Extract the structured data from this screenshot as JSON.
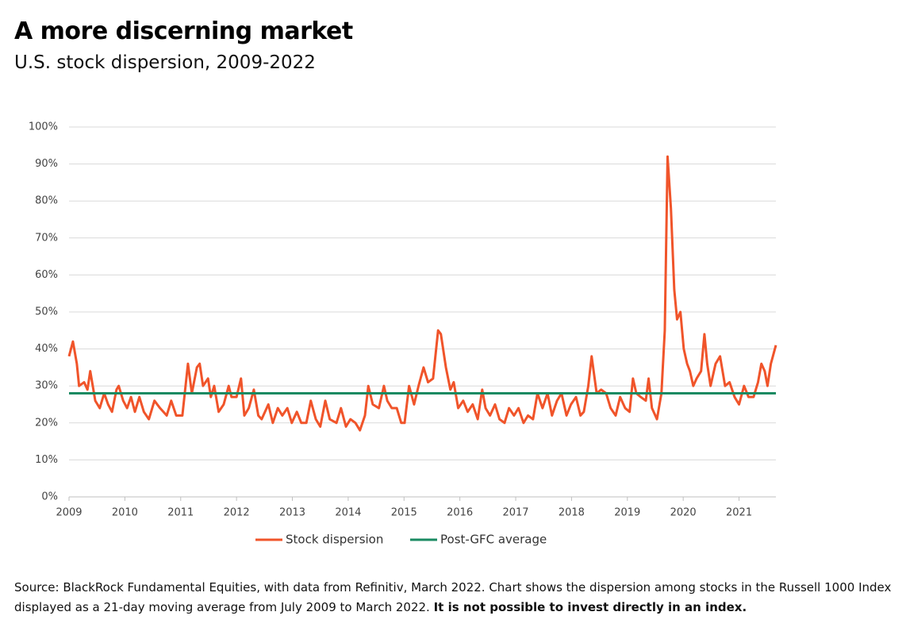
{
  "chart_data": {
    "type": "line",
    "title": "A more discerning market",
    "subtitle": "U.S. stock dispersion, 2009-2022",
    "footnote": "Source: BlackRock Fundamental Equities, with data from Refinitiv, March 2022. Chart shows the dispersion among stocks in the Russell 1000 Index displayed as a 21-day moving average from July 2009 to March 2022.",
    "footnote_emphasis": "It is not possible to invest directly in an index.",
    "x": [
      2009.0,
      2009.07,
      2009.14,
      2009.18,
      2009.27,
      2009.33,
      2009.38,
      2009.47,
      2009.55,
      2009.63,
      2009.7,
      2009.77,
      2009.85,
      2009.89,
      2009.97,
      2010.04,
      2010.11,
      2010.18,
      2010.26,
      2010.34,
      2010.43,
      2010.53,
      2010.63,
      2010.75,
      2010.83,
      2010.92,
      2011.03,
      2011.13,
      2011.2,
      2011.29,
      2011.34,
      2011.4,
      2011.49,
      2011.54,
      2011.6,
      2011.68,
      2011.77,
      2011.86,
      2011.91,
      2012.0,
      2012.08,
      2012.14,
      2012.22,
      2012.31,
      2012.39,
      2012.45,
      2012.57,
      2012.65,
      2012.74,
      2012.82,
      2012.91,
      2012.99,
      2013.08,
      2013.16,
      2013.25,
      2013.33,
      2013.42,
      2013.5,
      2013.59,
      2013.67,
      2013.79,
      2013.87,
      2013.96,
      2014.04,
      2014.13,
      2014.21,
      2014.3,
      2014.36,
      2014.44,
      2014.55,
      2014.64,
      2014.7,
      2014.78,
      2014.87,
      2014.95,
      2015.01,
      2015.09,
      2015.18,
      2015.26,
      2015.35,
      2015.43,
      2015.52,
      2015.61,
      2015.66,
      2015.75,
      2015.83,
      2015.89,
      2015.97,
      2016.06,
      2016.14,
      2016.23,
      2016.32,
      2016.4,
      2016.46,
      2016.54,
      2016.63,
      2016.71,
      2016.8,
      2016.88,
      2016.97,
      2017.05,
      2017.14,
      2017.22,
      2017.31,
      2017.39,
      2017.48,
      2017.57,
      2017.65,
      2017.74,
      2017.82,
      2017.91,
      2017.99,
      2018.08,
      2018.16,
      2018.22,
      2018.3,
      2018.36,
      2018.45,
      2018.53,
      2018.62,
      2018.7,
      2018.79,
      2018.87,
      2018.96,
      2019.04,
      2019.1,
      2019.16,
      2019.24,
      2019.33,
      2019.38,
      2019.44,
      2019.53,
      2019.61,
      2019.67,
      2019.72,
      2019.78,
      2019.84,
      2019.89,
      2019.95,
      2020.01,
      2020.07,
      2020.12,
      2020.18,
      2020.24,
      2020.32,
      2020.38,
      2020.43,
      2020.49,
      2020.58,
      2020.66,
      2020.75,
      2020.83,
      2020.92,
      2021.0,
      2021.09,
      2021.17,
      2021.26,
      2021.34,
      2021.4,
      2021.46,
      2021.51,
      2021.57,
      2021.66
    ],
    "series": [
      {
        "name": "Stock dispersion",
        "color": "#f0542a",
        "values": [
          38,
          42,
          36,
          30,
          31,
          29,
          34,
          26,
          24,
          28,
          25,
          23,
          29,
          30,
          26,
          24,
          27,
          23,
          27,
          23,
          21,
          26,
          24,
          22,
          26,
          22,
          22,
          36,
          28,
          35,
          36,
          30,
          32,
          27,
          30,
          23,
          25,
          30,
          27,
          27,
          32,
          22,
          24,
          29,
          22,
          21,
          25,
          20,
          24,
          22,
          24,
          20,
          23,
          20,
          20,
          26,
          21,
          19,
          26,
          21,
          20,
          24,
          19,
          21,
          20,
          18,
          22,
          30,
          25,
          24,
          30,
          26,
          24,
          24,
          20,
          20,
          30,
          25,
          30,
          35,
          31,
          32,
          45,
          44,
          35,
          29,
          31,
          24,
          26,
          23,
          25,
          21,
          29,
          24,
          22,
          25,
          21,
          20,
          24,
          22,
          24,
          20,
          22,
          21,
          28,
          24,
          28,
          22,
          26,
          28,
          22,
          25,
          27,
          22,
          23,
          30,
          38,
          28,
          29,
          28,
          24,
          22,
          27,
          24,
          23,
          32,
          28,
          27,
          26,
          32,
          24,
          21,
          28,
          45,
          92,
          78,
          56,
          48,
          50,
          40,
          36,
          34,
          30,
          32,
          34,
          44,
          36,
          30,
          36,
          38,
          30,
          31,
          27,
          25,
          30,
          27,
          27,
          31,
          36,
          34,
          30,
          36,
          41
        ]
      }
    ],
    "average": {
      "name": "Post-GFC average",
      "color": "#1a8a62",
      "value": 28
    },
    "xlim": [
      2009,
      2021.66
    ],
    "xticks": [
      2009,
      2010,
      2011,
      2012,
      2013,
      2014,
      2015,
      2016,
      2017,
      2018,
      2019,
      2020,
      2021
    ],
    "ylim": [
      0,
      100
    ],
    "yticks": [
      {
        "value": 0,
        "label": "0%"
      },
      {
        "value": 10,
        "label": "10%"
      },
      {
        "value": 20,
        "label": "20%"
      },
      {
        "value": 30,
        "label": "30%"
      },
      {
        "value": 40,
        "label": "40%"
      },
      {
        "value": 50,
        "label": "50%"
      },
      {
        "value": 60,
        "label": "60%"
      },
      {
        "value": 70,
        "label": "70%"
      },
      {
        "value": 80,
        "label": "80%"
      },
      {
        "value": 90,
        "label": "90%"
      },
      {
        "value": 100,
        "label": "100%"
      }
    ],
    "grid": true
  }
}
